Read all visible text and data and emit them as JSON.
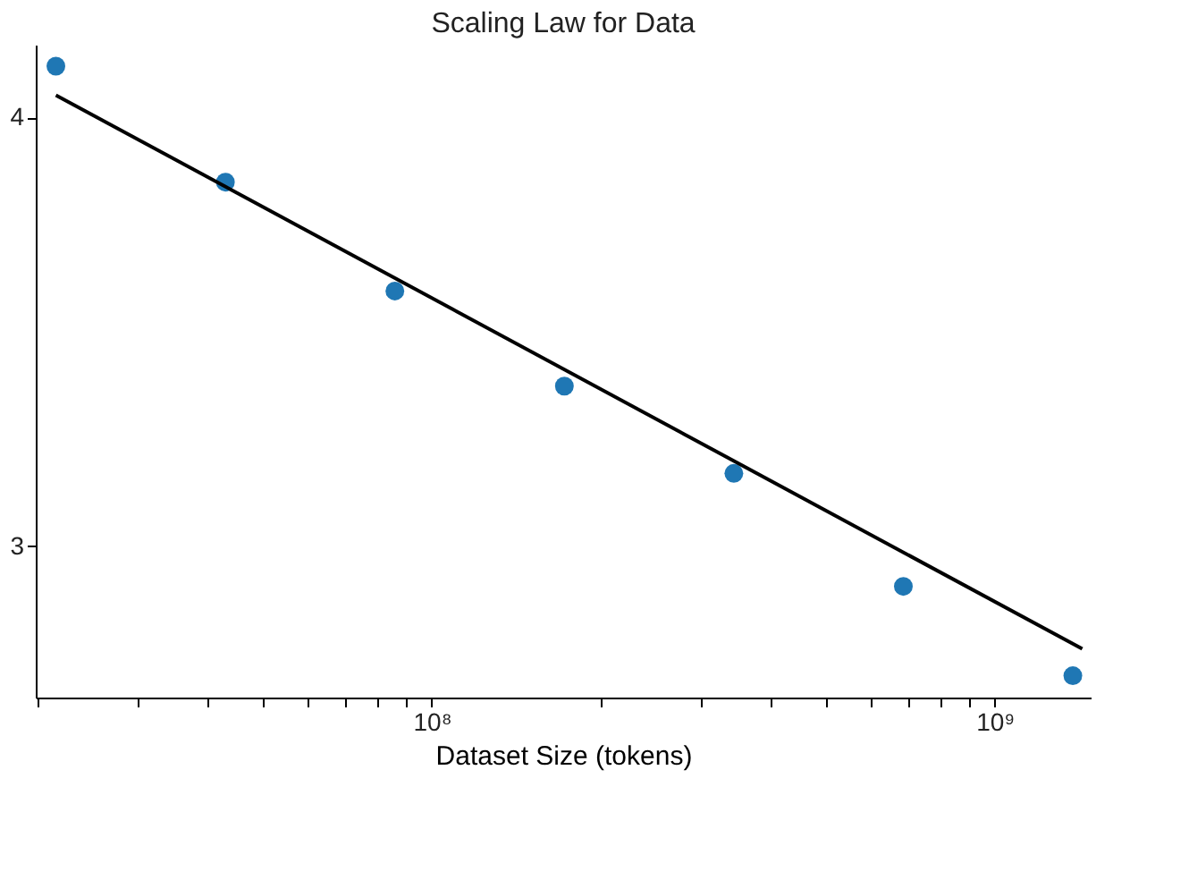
{
  "chart_data": {
    "type": "scatter",
    "title": "Scaling Law for Data",
    "xlabel": "Dataset Size (tokens)",
    "log": "xy",
    "grid": false,
    "marker": "circle",
    "xlim": [
      19800000.0,
      1480000000.0
    ],
    "ylim": [
      2.71,
      4.2
    ],
    "xticks": [
      {
        "value": 20000000.0,
        "label": null
      },
      {
        "value": 30000000.0,
        "label": null
      },
      {
        "value": 40000000.0,
        "label": null
      },
      {
        "value": 50000000.0,
        "label": null
      },
      {
        "value": 60000000.0,
        "label": null
      },
      {
        "value": 70000000.0,
        "label": null
      },
      {
        "value": 80000000.0,
        "label": null
      },
      {
        "value": 90000000.0,
        "label": null
      },
      {
        "value": 100000000.0,
        "label": "10⁸"
      },
      {
        "value": 200000000.0,
        "label": null
      },
      {
        "value": 300000000.0,
        "label": null
      },
      {
        "value": 400000000.0,
        "label": null
      },
      {
        "value": 500000000.0,
        "label": null
      },
      {
        "value": 600000000.0,
        "label": null
      },
      {
        "value": 700000000.0,
        "label": null
      },
      {
        "value": 800000000.0,
        "label": null
      },
      {
        "value": 900000000.0,
        "label": null
      },
      {
        "value": 1000000000.0,
        "label": "10⁹"
      }
    ],
    "yticks": [
      3,
      4
    ],
    "series": [
      {
        "color": "#1f77b4",
        "x": [
          21500000.0,
          43000000.0,
          86000000.0,
          172000000.0,
          344000000.0,
          688000000.0,
          1376000000.0
        ],
        "values": [
          4.14,
          3.83,
          3.56,
          3.34,
          3.15,
          2.92,
          2.75
        ]
      },
      {
        "type": "line",
        "color": "#000000",
        "marker": "none",
        "line_style": "solid",
        "x": [
          21500000.0,
          1430000000.0
        ],
        "values": [
          4.06,
          2.8
        ]
      }
    ]
  }
}
